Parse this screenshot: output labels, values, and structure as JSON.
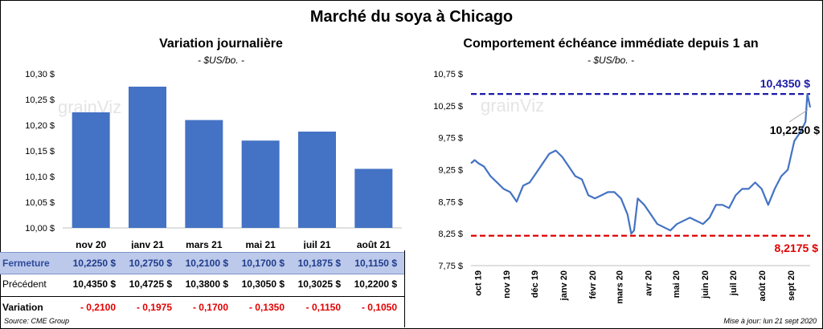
{
  "title": "Marché du soya à Chicago",
  "left_panel": {
    "title": "Variation journalière",
    "unit": "- $US/bo. -",
    "table": {
      "rows": [
        {
          "label": "Fermeture",
          "values": [
            "10,2250  $",
            "10,2750  $",
            "10,2100  $",
            "10,1700  $",
            "10,1875  $",
            "10,1150  $"
          ]
        },
        {
          "label": "Précédent",
          "values": [
            "10,4350  $",
            "10,4725  $",
            "10,3800  $",
            "10,3050  $",
            "10,3025  $",
            "10,2200  $"
          ]
        },
        {
          "label": "Variation",
          "values": [
            "- 0,2100",
            "- 0,1975",
            "- 0,1700",
            "- 0,1350",
            "- 0,1150",
            "- 0,1050"
          ]
        }
      ]
    }
  },
  "right_panel": {
    "title": "Comportement  échéance immédiate depuis 1 an",
    "unit": "- $US/bo. -",
    "annotations": {
      "high": "10,4350  $",
      "current": "10,2250 $",
      "low": "8,2175  $"
    }
  },
  "footer": {
    "source": "Source: CME Group",
    "updated": "Mise à jour: lun 21 sept 2020"
  },
  "watermark": "grainViz",
  "colors": {
    "bar": "#4472c4",
    "line": "#4472c4",
    "high_line": "#1a1aa8",
    "low_line": "#e10000"
  },
  "chart_data": [
    {
      "type": "bar",
      "title": "Variation journalière",
      "categories": [
        "nov 20",
        "janv 21",
        "mars 21",
        "mai 21",
        "juil 21",
        "août 21"
      ],
      "values": [
        10.225,
        10.275,
        10.21,
        10.17,
        10.1875,
        10.115
      ],
      "ylim": [
        10.0,
        10.3
      ],
      "yticks": [
        10.0,
        10.05,
        10.1,
        10.15,
        10.2,
        10.25,
        10.3
      ],
      "ytick_labels": [
        "10,00 $",
        "10,05 $",
        "10,10 $",
        "10,15 $",
        "10,20 $",
        "10,25 $",
        "10,30 $"
      ],
      "grid": false
    },
    {
      "type": "line",
      "title": "Comportement  échéance immédiate depuis 1 an",
      "ylim": [
        7.75,
        10.75
      ],
      "yticks": [
        7.75,
        8.25,
        8.75,
        9.25,
        9.75,
        10.25,
        10.75
      ],
      "ytick_labels": [
        "7,75 $",
        "8,25 $",
        "8,75 $",
        "9,25 $",
        "9,75 $",
        "10,25 $",
        "10,75 $"
      ],
      "xticks": [
        "2019-10-01",
        "2019-11-01",
        "2019-12-01",
        "2020-01-01",
        "2020-02-01",
        "2020-03-01",
        "2020-04-01",
        "2020-05-01",
        "2020-06-01",
        "2020-07-01",
        "2020-08-01",
        "2020-09-01"
      ],
      "xtick_labels": [
        "oct 19",
        "nov 19",
        "déc 19",
        "janv 20",
        "févr 20",
        "mars 20",
        "avr 20",
        "mai 20",
        "juin 20",
        "juil 20",
        "août 20",
        "sept 20"
      ],
      "hlines": [
        {
          "y": 10.435,
          "label": "10,4350  $"
        },
        {
          "y": 8.2175,
          "label": "8,2175  $"
        }
      ],
      "series": [
        {
          "x": [
            "2019-09-23",
            "2019-09-27",
            "2019-10-01",
            "2019-10-07",
            "2019-10-14",
            "2019-10-21",
            "2019-10-28",
            "2019-11-04",
            "2019-11-11",
            "2019-11-18",
            "2019-11-25",
            "2019-12-02",
            "2019-12-09",
            "2019-12-16",
            "2019-12-23",
            "2019-12-30",
            "2020-01-06",
            "2020-01-13",
            "2020-01-20",
            "2020-01-27",
            "2020-02-03",
            "2020-02-10",
            "2020-02-17",
            "2020-02-24",
            "2020-03-02",
            "2020-03-09",
            "2020-03-13",
            "2020-03-16",
            "2020-03-20",
            "2020-03-27",
            "2020-04-03",
            "2020-04-10",
            "2020-04-17",
            "2020-04-24",
            "2020-05-01",
            "2020-05-08",
            "2020-05-15",
            "2020-05-22",
            "2020-05-29",
            "2020-06-05",
            "2020-06-12",
            "2020-06-19",
            "2020-06-26",
            "2020-07-03",
            "2020-07-10",
            "2020-07-17",
            "2020-07-24",
            "2020-07-31",
            "2020-08-07",
            "2020-08-14",
            "2020-08-21",
            "2020-08-28",
            "2020-09-04",
            "2020-09-11",
            "2020-09-16",
            "2020-09-18",
            "2020-09-21"
          ],
          "y": [
            9.35,
            9.4,
            9.35,
            9.3,
            9.15,
            9.05,
            8.95,
            8.9,
            8.75,
            9.0,
            9.05,
            9.2,
            9.35,
            9.5,
            9.55,
            9.45,
            9.3,
            9.15,
            9.1,
            8.85,
            8.8,
            8.85,
            8.9,
            8.9,
            8.8,
            8.55,
            8.25,
            8.3,
            8.8,
            8.7,
            8.55,
            8.4,
            8.35,
            8.3,
            8.4,
            8.45,
            8.5,
            8.45,
            8.4,
            8.5,
            8.7,
            8.7,
            8.65,
            8.85,
            8.95,
            8.95,
            9.05,
            8.95,
            8.7,
            8.95,
            9.15,
            9.25,
            9.7,
            9.85,
            10.0,
            10.435,
            10.225
          ]
        }
      ],
      "grid": false
    }
  ]
}
